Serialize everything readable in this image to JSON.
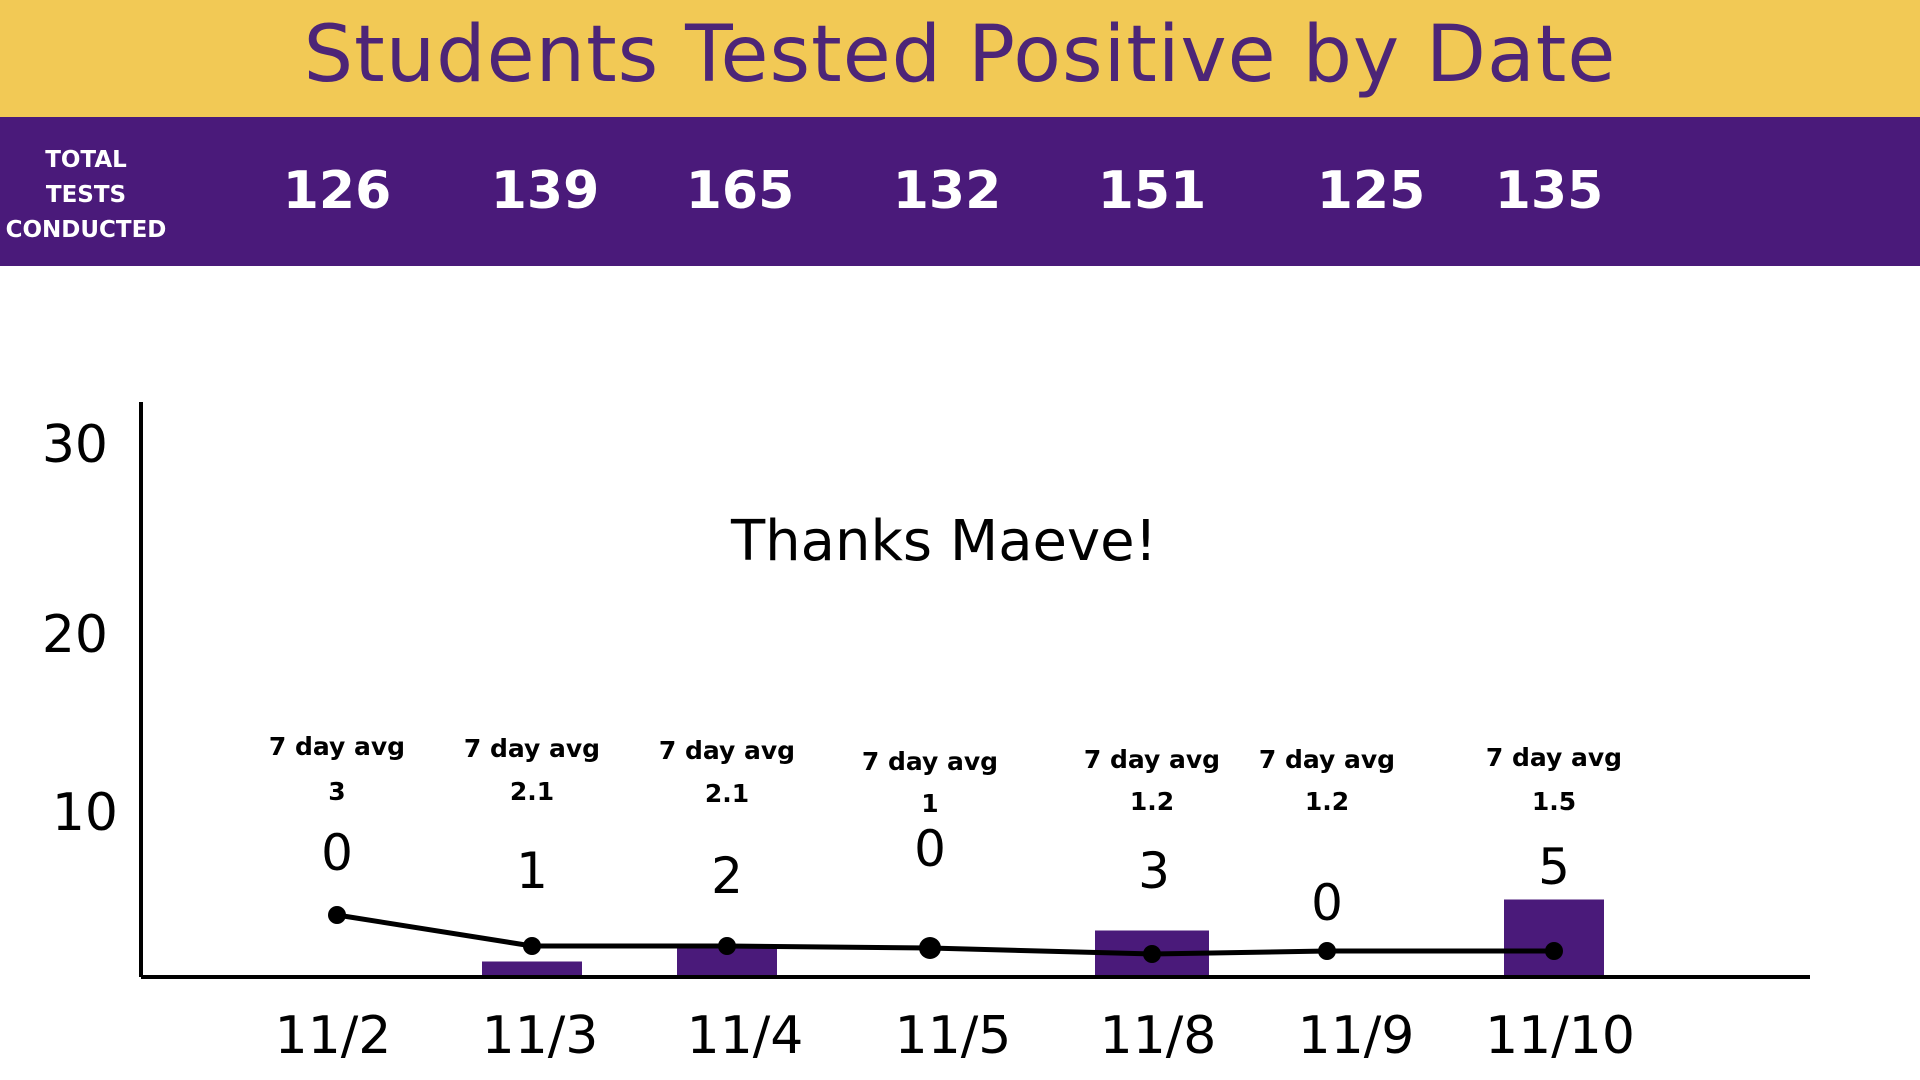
{
  "title": "Students Tested Positive by Date",
  "colors": {
    "title_bg": "#f2c955",
    "title_text": "#4d2577",
    "totals_bg": "#4a1a7a",
    "bar": "#4a1a7a",
    "line": "#000000",
    "axis": "#000000"
  },
  "totals": {
    "label_lines": [
      "TOTAL",
      "TESTS",
      "CONDUCTED"
    ],
    "values": [
      "126",
      "139",
      "165",
      "132",
      "151",
      "125",
      "135"
    ]
  },
  "chart_data": {
    "type": "bar",
    "categories": [
      "11/2",
      "11/3",
      "11/4",
      "11/5",
      "11/8",
      "11/9",
      "11/10"
    ],
    "series": [
      {
        "values": [
          0,
          1,
          2,
          0,
          3,
          0,
          5
        ]
      },
      {
        "type": "line",
        "values": [
          3,
          2.1,
          2.1,
          1,
          1.2,
          1.2,
          1.5
        ]
      }
    ],
    "value_labels": [
      "0",
      "1",
      "2",
      "0",
      "3",
      "0",
      "5"
    ],
    "avg_caption": "7 day avg",
    "avg_labels": [
      "3",
      "2.1",
      "2.1",
      "1",
      "1.2",
      "1.2",
      "1.5"
    ],
    "y_ticks": [
      "30",
      "20",
      "10"
    ],
    "annotation": "Thanks Maeve!",
    "legend": "none",
    "grid": false
  }
}
